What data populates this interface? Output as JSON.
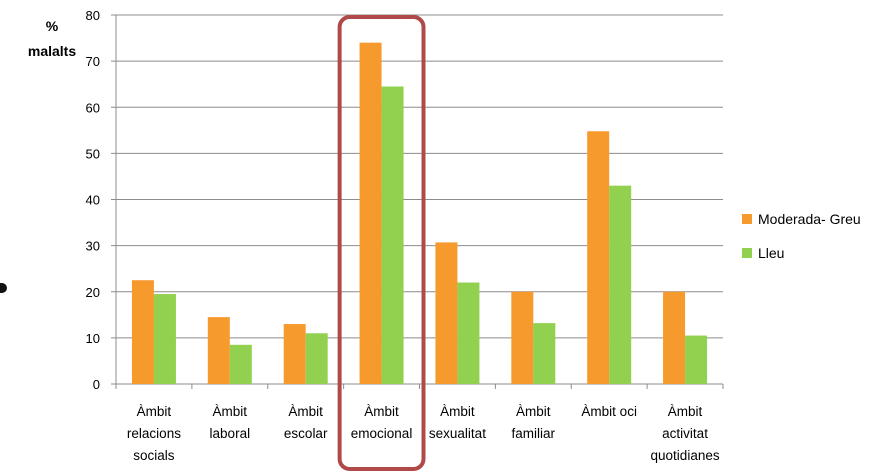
{
  "chart_data": {
    "type": "bar",
    "ylabel_line1": "%",
    "ylabel_line2": "malalts",
    "ylim": [
      0,
      80
    ],
    "yticks": [
      0,
      10,
      20,
      30,
      40,
      50,
      60,
      70,
      80
    ],
    "grid": true,
    "legend_position": "right",
    "categories": [
      [
        "Àmbit",
        "relacions",
        "socials"
      ],
      [
        "Àmbit",
        "laboral"
      ],
      [
        "Àmbit",
        "escolar"
      ],
      [
        "Àmbit",
        "emocional"
      ],
      [
        "Àmbit",
        "sexualitat"
      ],
      [
        "Àmbit",
        "familiar"
      ],
      [
        "Àmbit oci"
      ],
      [
        "Àmbit",
        "activitat",
        "quotidianes"
      ]
    ],
    "series": [
      {
        "name": "Moderada- Greu",
        "color": "#F79A2E",
        "values": [
          22.5,
          14.5,
          13,
          74,
          30.7,
          20,
          54.8,
          20
        ]
      },
      {
        "name": "Lleu",
        "color": "#92D050",
        "values": [
          19.5,
          8.5,
          11,
          64.5,
          22,
          13.2,
          43,
          10.5
        ]
      }
    ],
    "highlight": {
      "category_index": 3,
      "color": "#B04A4A"
    }
  }
}
